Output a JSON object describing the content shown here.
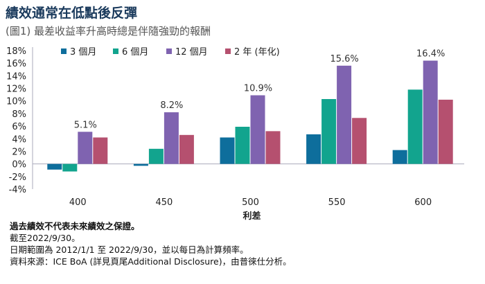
{
  "title": "績效通常在低點後反彈",
  "subtitle": "(圖1) 最差收益率升高時總是伴隨強勁的報酬",
  "chart_data": {
    "type": "bar",
    "title": "(圖1) 最差收益率升高時總是伴隨強勁的報酬",
    "xlabel": "利差",
    "ylabel": "",
    "categories": [
      "400",
      "450",
      "500",
      "550",
      "600"
    ],
    "ylim": [
      -4,
      18
    ],
    "yticks": [
      "18%",
      "16%",
      "14%",
      "12%",
      "10%",
      "8%",
      "6%",
      "4%",
      "2%",
      "0%",
      "-2%",
      "-4%"
    ],
    "legend_position": "top",
    "series": [
      {
        "name": "3 個月",
        "color": "#0e6e9c",
        "values": [
          -0.9,
          -0.3,
          4.2,
          4.7,
          2.2
        ]
      },
      {
        "name": "6 個月",
        "color": "#12a48e",
        "values": [
          -1.2,
          2.4,
          5.9,
          10.3,
          11.8
        ]
      },
      {
        "name": "12 個月",
        "color": "#7f63b0",
        "values": [
          5.1,
          8.2,
          10.9,
          15.6,
          16.4
        ]
      },
      {
        "name": "2 年 (年化)",
        "color": "#b5506f",
        "values": [
          4.2,
          4.6,
          5.2,
          7.3,
          10.2
        ]
      }
    ],
    "data_labels": [
      "5.1%",
      "8.2%",
      "10.9%",
      "15.6%",
      "16.4%"
    ]
  },
  "notes": {
    "line1": "過去績效不代表未來績效之保證。",
    "line2": "截至2022/9/30。",
    "line3": "日期範圍為 2012/1/1 至 2022/9/30，並以每日為計算頻率。",
    "line4": "資料來源：ICE BoA (詳見頁尾Additional Disclosure)，由普徠仕分析。"
  }
}
